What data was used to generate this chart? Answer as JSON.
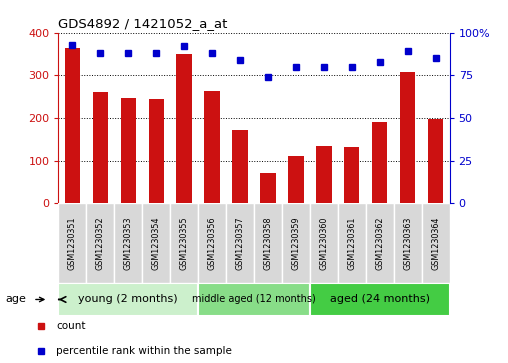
{
  "title": "GDS4892 / 1421052_a_at",
  "samples": [
    "GSM1230351",
    "GSM1230352",
    "GSM1230353",
    "GSM1230354",
    "GSM1230355",
    "GSM1230356",
    "GSM1230357",
    "GSM1230358",
    "GSM1230359",
    "GSM1230360",
    "GSM1230361",
    "GSM1230362",
    "GSM1230363",
    "GSM1230364"
  ],
  "counts": [
    365,
    262,
    248,
    244,
    350,
    263,
    172,
    72,
    112,
    135,
    133,
    191,
    307,
    197
  ],
  "percentile_ranks": [
    93,
    88,
    88,
    88,
    92,
    88,
    84,
    74,
    80,
    80,
    80,
    83,
    89,
    85
  ],
  "groups": [
    {
      "label": "young (2 months)",
      "start": 0,
      "end": 5,
      "color": "#ccf0cc"
    },
    {
      "label": "middle aged (12 months)",
      "start": 5,
      "end": 9,
      "color": "#88dd88"
    },
    {
      "label": "aged (24 months)",
      "start": 9,
      "end": 14,
      "color": "#44cc44"
    }
  ],
  "bar_color": "#cc1111",
  "dot_color": "#0000cc",
  "ylim_left": [
    0,
    400
  ],
  "ylim_right": [
    0,
    100
  ],
  "yticks_left": [
    0,
    100,
    200,
    300,
    400
  ],
  "yticks_right": [
    0,
    25,
    50,
    75,
    100
  ],
  "ytick_labels_right": [
    "0",
    "25",
    "50",
    "75",
    "100%"
  ],
  "background_color": "#ffffff",
  "plot_bg_color": "#ffffff",
  "tick_label_color_left": "#cc1111",
  "tick_label_color_right": "#0000cc",
  "xticklabel_bg": "#dddddd",
  "legend_items": [
    {
      "label": "count",
      "color": "#cc1111"
    },
    {
      "label": "percentile rank within the sample",
      "color": "#0000cc"
    }
  ],
  "age_label": "age"
}
